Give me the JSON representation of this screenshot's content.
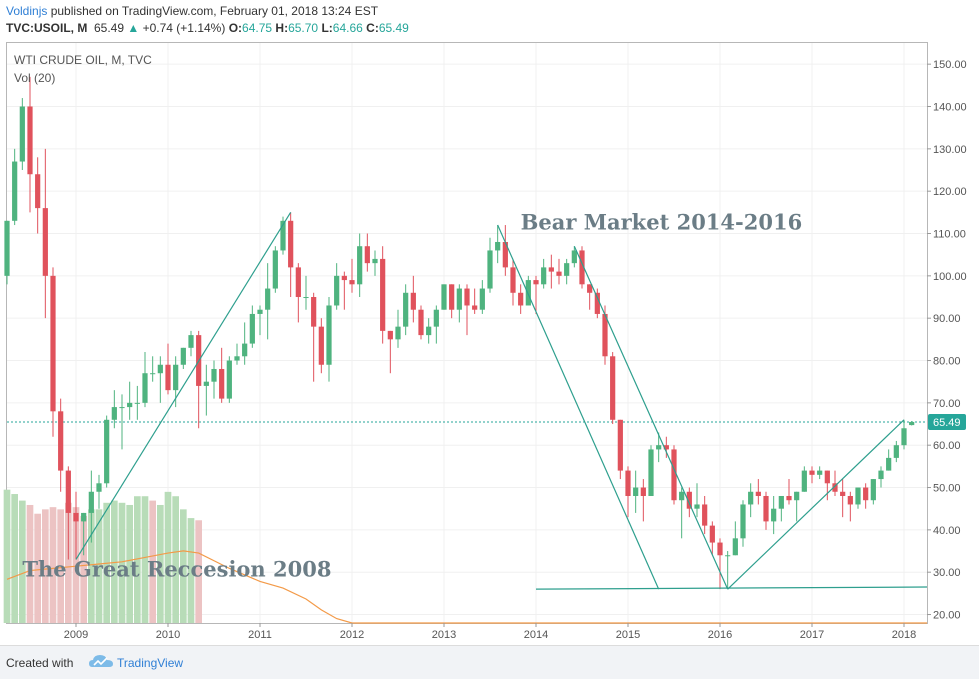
{
  "header": {
    "author": "Voldinjs",
    "published": " published on TradingView.com, February 01, 2018 13:24 EST",
    "symbol": "TVC:USOIL, M",
    "last": "65.49",
    "change_arrow": "▲",
    "change": "+0.74 (+1.14%)",
    "o_label": "O:",
    "o_val": "64.75",
    "h_label": "H:",
    "h_val": "65.70",
    "l_label": "L:",
    "l_val": "64.66",
    "c_label": "C:",
    "c_val": "65.49"
  },
  "colors": {
    "up": "#4fb37f",
    "down": "#e0525c",
    "up_vol": "#b8dcb8",
    "down_vol": "#ecc3c3",
    "ma": "#f39a48",
    "drawing": "#2e9f8e",
    "price_tag": "#26a69a",
    "brand": "#2f7fd5"
  },
  "chart_data": {
    "type": "candlestick",
    "title": "WTI CRUDE OIL, M, TVC",
    "indicator_label": "Vol (20)",
    "y_axis": {
      "range": [
        18,
        155
      ],
      "ticks": [
        "150.00",
        "140.00",
        "130.00",
        "120.00",
        "110.00",
        "100.00",
        "90.00",
        "80.00",
        "70.00",
        "60.00",
        "50.00",
        "40.00",
        "30.00",
        "20.00"
      ],
      "position": "right"
    },
    "x_axis": {
      "range": [
        "2008-04",
        "2018-04"
      ],
      "ticks": [
        "2009",
        "2010",
        "2011",
        "2012",
        "2013",
        "2014",
        "2015",
        "2016",
        "2017",
        "2018"
      ]
    },
    "last_price": 65.49,
    "last_price_label": "65.49",
    "candles": [
      [
        "2008-04",
        100,
        113,
        98,
        113
      ],
      [
        "2008-05",
        113,
        130,
        112,
        127
      ],
      [
        "2008-06",
        127,
        142,
        125,
        140
      ],
      [
        "2008-07",
        140,
        147,
        115,
        124
      ],
      [
        "2008-08",
        124,
        128,
        110,
        116
      ],
      [
        "2008-09",
        116,
        130,
        90,
        100
      ],
      [
        "2008-10",
        100,
        102,
        62,
        68
      ],
      [
        "2008-11",
        68,
        71,
        49,
        54
      ],
      [
        "2008-12",
        54,
        55,
        33,
        44
      ],
      [
        "2009-01",
        44,
        49,
        33,
        42
      ],
      [
        "2009-02",
        42,
        44,
        34,
        44
      ],
      [
        "2009-03",
        44,
        54,
        37,
        49
      ],
      [
        "2009-04",
        49,
        53,
        45,
        51
      ],
      [
        "2009-05",
        51,
        67,
        50,
        66
      ],
      [
        "2009-06",
        66,
        73,
        64,
        69
      ],
      [
        "2009-07",
        69,
        72,
        59,
        69
      ],
      [
        "2009-08",
        69,
        75,
        66,
        70
      ],
      [
        "2009-09",
        70,
        74,
        66,
        70
      ],
      [
        "2009-10",
        70,
        82,
        69,
        77
      ],
      [
        "2009-11",
        77,
        81,
        75,
        77
      ],
      [
        "2009-12",
        77,
        81,
        70,
        79
      ],
      [
        "2010-01",
        79,
        84,
        72,
        73
      ],
      [
        "2010-02",
        73,
        81,
        69,
        79
      ],
      [
        "2010-03",
        79,
        83,
        78,
        83
      ],
      [
        "2010-04",
        83,
        87,
        81,
        86
      ],
      [
        "2010-05",
        86,
        87,
        64,
        74
      ],
      [
        "2010-06",
        74,
        79,
        67,
        75
      ],
      [
        "2010-07",
        75,
        80,
        71,
        78
      ],
      [
        "2010-08",
        78,
        83,
        70,
        71
      ],
      [
        "2010-09",
        71,
        81,
        70,
        80
      ],
      [
        "2010-10",
        80,
        84,
        79,
        81
      ],
      [
        "2010-11",
        81,
        89,
        79,
        84
      ],
      [
        "2010-12",
        84,
        93,
        83,
        91
      ],
      [
        "2011-01",
        91,
        93,
        86,
        92
      ],
      [
        "2011-02",
        92,
        103,
        85,
        97
      ],
      [
        "2011-03",
        97,
        107,
        96,
        106
      ],
      [
        "2011-04",
        106,
        114,
        105,
        113
      ],
      [
        "2011-05",
        113,
        115,
        95,
        102
      ],
      [
        "2011-06",
        102,
        103,
        89,
        95
      ],
      [
        "2011-07",
        95,
        100,
        92,
        95
      ],
      [
        "2011-08",
        95,
        96,
        75,
        88
      ],
      [
        "2011-09",
        88,
        90,
        77,
        79
      ],
      [
        "2011-10",
        79,
        95,
        75,
        93
      ],
      [
        "2011-11",
        93,
        103,
        92,
        100
      ],
      [
        "2011-12",
        100,
        101,
        92,
        99
      ],
      [
        "2012-01",
        99,
        104,
        96,
        98
      ],
      [
        "2012-02",
        98,
        110,
        95,
        107
      ],
      [
        "2012-03",
        107,
        110,
        101,
        103
      ],
      [
        "2012-04",
        103,
        106,
        100,
        104
      ],
      [
        "2012-05",
        104,
        107,
        84,
        87
      ],
      [
        "2012-06",
        87,
        87,
        77,
        85
      ],
      [
        "2012-07",
        85,
        92,
        83,
        88
      ],
      [
        "2012-08",
        88,
        98,
        86,
        96
      ],
      [
        "2012-09",
        96,
        100,
        89,
        92
      ],
      [
        "2012-10",
        92,
        93,
        85,
        86
      ],
      [
        "2012-11",
        86,
        90,
        84,
        88
      ],
      [
        "2012-12",
        88,
        93,
        84,
        92
      ],
      [
        "2013-01",
        92,
        98,
        92,
        98
      ],
      [
        "2013-02",
        98,
        98,
        90,
        92
      ],
      [
        "2013-03",
        92,
        98,
        89,
        97
      ],
      [
        "2013-04",
        97,
        98,
        86,
        93
      ],
      [
        "2013-05",
        93,
        97,
        91,
        92
      ],
      [
        "2013-06",
        92,
        99,
        91,
        97
      ],
      [
        "2013-07",
        97,
        109,
        96,
        106
      ],
      [
        "2013-08",
        106,
        112,
        103,
        108
      ],
      [
        "2013-09",
        108,
        112,
        100,
        102
      ],
      [
        "2013-10",
        102,
        104,
        93,
        96
      ],
      [
        "2013-11",
        96,
        98,
        91,
        93
      ],
      [
        "2013-12",
        93,
        100,
        93,
        99
      ],
      [
        "2014-01",
        99,
        100,
        91,
        98
      ],
      [
        "2014-02",
        98,
        104,
        97,
        102
      ],
      [
        "2014-03",
        102,
        105,
        97,
        101
      ],
      [
        "2014-04",
        101,
        104,
        98,
        100
      ],
      [
        "2014-05",
        100,
        104,
        98,
        103
      ],
      [
        "2014-06",
        103,
        107,
        102,
        106
      ],
      [
        "2014-07",
        106,
        107,
        97,
        98
      ],
      [
        "2014-08",
        98,
        98,
        92,
        96
      ],
      [
        "2014-09",
        96,
        97,
        90,
        91
      ],
      [
        "2014-10",
        91,
        93,
        79,
        81
      ],
      [
        "2014-11",
        81,
        82,
        65,
        66
      ],
      [
        "2014-12",
        66,
        66,
        52,
        54
      ],
      [
        "2015-01",
        54,
        55,
        43,
        48
      ],
      [
        "2015-02",
        48,
        54,
        44,
        50
      ],
      [
        "2015-03",
        50,
        52,
        42,
        48
      ],
      [
        "2015-04",
        48,
        60,
        48,
        59
      ],
      [
        "2015-05",
        59,
        63,
        56,
        60
      ],
      [
        "2015-06",
        60,
        62,
        57,
        59
      ],
      [
        "2015-07",
        59,
        60,
        46,
        47
      ],
      [
        "2015-08",
        47,
        50,
        38,
        49
      ],
      [
        "2015-09",
        49,
        50,
        43,
        45
      ],
      [
        "2015-10",
        45,
        51,
        43,
        46
      ],
      [
        "2015-11",
        46,
        48,
        39,
        41
      ],
      [
        "2015-12",
        41,
        42,
        34,
        37
      ],
      [
        "2016-01",
        37,
        38,
        26,
        34
      ],
      [
        "2016-02",
        34,
        35,
        26,
        34
      ],
      [
        "2016-03",
        34,
        42,
        34,
        38
      ],
      [
        "2016-04",
        38,
        47,
        36,
        46
      ],
      [
        "2016-05",
        46,
        51,
        43,
        49
      ],
      [
        "2016-06",
        49,
        52,
        46,
        48
      ],
      [
        "2016-07",
        48,
        49,
        40,
        42
      ],
      [
        "2016-08",
        42,
        48,
        39,
        45
      ],
      [
        "2016-09",
        45,
        48,
        42,
        48
      ],
      [
        "2016-10",
        48,
        52,
        46,
        47
      ],
      [
        "2016-11",
        47,
        49,
        42,
        49
      ],
      [
        "2016-12",
        49,
        55,
        49,
        54
      ],
      [
        "2017-01",
        54,
        55,
        51,
        53
      ],
      [
        "2017-02",
        53,
        55,
        52,
        54
      ],
      [
        "2017-03",
        54,
        54,
        47,
        51
      ],
      [
        "2017-04",
        51,
        54,
        48,
        49
      ],
      [
        "2017-05",
        49,
        52,
        43,
        48
      ],
      [
        "2017-06",
        48,
        49,
        42,
        46
      ],
      [
        "2017-07",
        46,
        50,
        45,
        50
      ],
      [
        "2017-08",
        50,
        51,
        45,
        47
      ],
      [
        "2017-09",
        47,
        52,
        46,
        52
      ],
      [
        "2017-10",
        52,
        55,
        50,
        54
      ],
      [
        "2017-11",
        54,
        59,
        54,
        57
      ],
      [
        "2017-12",
        57,
        61,
        56,
        60
      ],
      [
        "2018-01",
        60,
        66,
        59,
        64
      ],
      [
        "2018-02",
        64.75,
        65.7,
        64.66,
        65.49
      ]
    ],
    "volume": {
      "bars": [
        [
          "2008-04",
          61,
          "up"
        ],
        [
          "2008-05",
          59,
          "up"
        ],
        [
          "2008-06",
          56,
          "up"
        ],
        [
          "2008-07",
          54,
          "down"
        ],
        [
          "2008-08",
          50,
          "down"
        ],
        [
          "2008-09",
          52,
          "down"
        ],
        [
          "2008-10",
          53,
          "down"
        ],
        [
          "2008-11",
          52,
          "down"
        ],
        [
          "2008-12",
          55,
          "down"
        ],
        [
          "2009-01",
          53,
          "down"
        ],
        [
          "2009-02",
          49,
          "down"
        ],
        [
          "2009-03",
          52,
          "up"
        ],
        [
          "2009-04",
          52,
          "up"
        ],
        [
          "2009-05",
          55,
          "up"
        ],
        [
          "2009-06",
          56,
          "up"
        ],
        [
          "2009-07",
          55,
          "up"
        ],
        [
          "2009-08",
          54,
          "up"
        ],
        [
          "2009-09",
          58,
          "up"
        ],
        [
          "2009-10",
          58,
          "up"
        ],
        [
          "2009-11",
          56,
          "down"
        ],
        [
          "2009-12",
          54,
          "up"
        ],
        [
          "2010-01",
          60,
          "up"
        ],
        [
          "2010-02",
          58,
          "up"
        ],
        [
          "2010-03",
          52,
          "up"
        ],
        [
          "2010-04",
          48,
          "up"
        ],
        [
          "2010-05",
          47,
          "down"
        ]
      ],
      "ma": [
        [
          "2008-04",
          20
        ],
        [
          "2008-07",
          24
        ],
        [
          "2008-10",
          25
        ],
        [
          "2009-01",
          26
        ],
        [
          "2009-04",
          27
        ],
        [
          "2009-07",
          28
        ],
        [
          "2009-10",
          30
        ],
        [
          "2010-01",
          32
        ],
        [
          "2010-03",
          33
        ],
        [
          "2010-05",
          32
        ],
        [
          "2010-09",
          25
        ],
        [
          "2011-01",
          19
        ],
        [
          "2011-04",
          16
        ],
        [
          "2011-07",
          11
        ],
        [
          "2011-09",
          6
        ],
        [
          "2011-11",
          2
        ],
        [
          "2012-01",
          0
        ],
        [
          "2018-04",
          0
        ]
      ]
    },
    "annotations": [
      {
        "text": "Bear Market 2014-2016",
        "x": "2013-11",
        "y": 111
      },
      {
        "text": "The Great Reccesion 2008",
        "x": "2008-06",
        "y": 29
      }
    ],
    "trend_lines": [
      [
        [
          "2009-01",
          33
        ],
        [
          "2011-05",
          115
        ]
      ],
      [
        [
          "2013-08",
          112
        ],
        [
          "2015-05",
          26
        ]
      ],
      [
        [
          "2014-06",
          107
        ],
        [
          "2016-02",
          26
        ]
      ],
      [
        [
          "2016-02",
          26
        ],
        [
          "2018-01",
          66
        ]
      ],
      [
        [
          "2014-01",
          26
        ],
        [
          "2018-04",
          26.5
        ]
      ]
    ]
  },
  "footer": {
    "created": "Created with",
    "brand": "TradingView"
  }
}
